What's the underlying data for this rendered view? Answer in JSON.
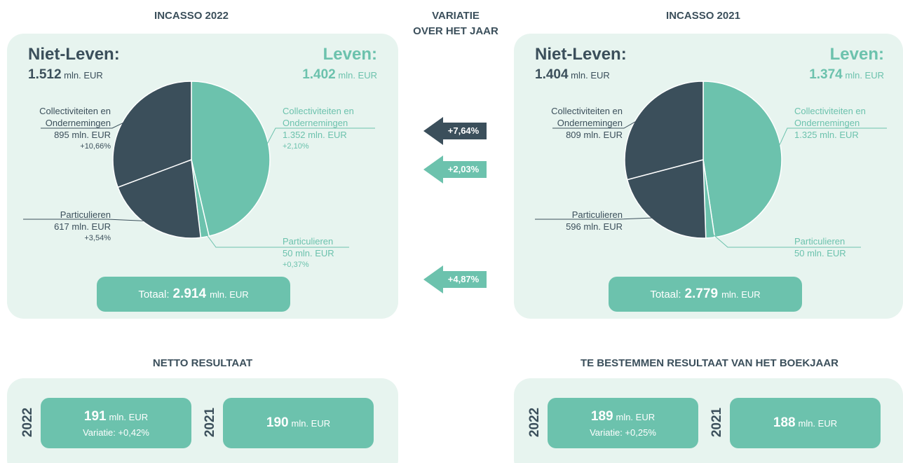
{
  "chart_data": [
    {
      "type": "pie",
      "title": "INCASSO 2022",
      "groups": [
        {
          "name": "Niet-Leven:",
          "total": "1.512",
          "unit": "mln. EUR"
        },
        {
          "name": "Leven:",
          "total": "1.402",
          "unit": "mln. EUR"
        }
      ],
      "categories": [
        "Collectiviteiten en Ondernemingen",
        "Particulieren",
        "Particulieren",
        "Collectiviteiten en Ondernemingen"
      ],
      "values": [
        1352,
        50,
        617,
        895
      ],
      "value_labels": [
        "1.352 mln. EUR",
        "50 mln. EUR",
        "617 mln. EUR",
        "895 mln. EUR"
      ],
      "changes": [
        "+2,10%",
        "+0,37%",
        "+3,54%",
        "+10,66%"
      ],
      "colors": [
        "#6cc2ad",
        "#6cc2ad",
        "#3b4f5b",
        "#3b4f5b"
      ],
      "total": {
        "label": "Totaal:",
        "value": "2.914",
        "unit": "mln. EUR"
      }
    },
    {
      "type": "pie",
      "title": "INCASSO 2021",
      "groups": [
        {
          "name": "Niet-Leven:",
          "total": "1.404",
          "unit": "mln. EUR"
        },
        {
          "name": "Leven:",
          "total": "1.374",
          "unit": "mln. EUR"
        }
      ],
      "categories": [
        "Collectiviteiten en Ondernemingen",
        "Particulieren",
        "Particulieren",
        "Collectiviteiten en Ondernemingen"
      ],
      "values": [
        1325,
        50,
        596,
        809
      ],
      "value_labels": [
        "1.325 mln. EUR",
        "50 mln. EUR",
        "596 mln. EUR",
        "809 mln. EUR"
      ],
      "colors": [
        "#6cc2ad",
        "#6cc2ad",
        "#3b4f5b",
        "#3b4f5b"
      ],
      "total": {
        "label": "Totaal:",
        "value": "2.779",
        "unit": "mln. EUR"
      }
    }
  ],
  "variation": {
    "title": [
      "VARIATIE",
      "OVER HET JAAR"
    ],
    "arrows": [
      {
        "label": "+7,64%",
        "color": "#3b4f5b"
      },
      {
        "label": "+2,03%",
        "color": "#6cc2ad"
      },
      {
        "label": "+4,87%",
        "color": "#6cc2ad"
      }
    ]
  },
  "results": [
    {
      "title": "NETTO RESULTAAT",
      "items": [
        {
          "year": "2022",
          "value": "191",
          "unit": "mln. EUR",
          "variation": "Variatie: +0,42%"
        },
        {
          "year": "2021",
          "value": "190",
          "unit": "mln. EUR"
        }
      ]
    },
    {
      "title": "TE BESTEMMEN RESULTAAT VAN HET BOEKJAAR",
      "items": [
        {
          "year": "2022",
          "value": "189",
          "unit": "mln. EUR",
          "variation": "Variatie: +0,25%"
        },
        {
          "year": "2021",
          "value": "188",
          "unit": "mln. EUR"
        }
      ]
    }
  ]
}
